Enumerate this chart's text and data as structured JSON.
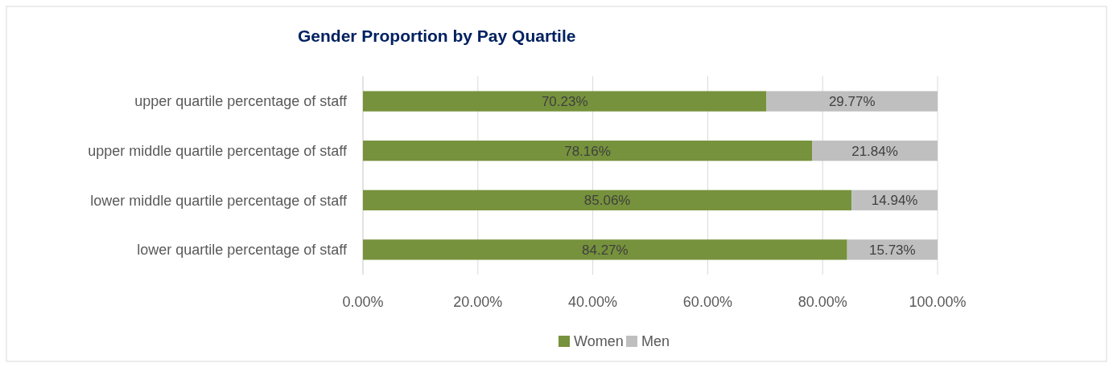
{
  "chart_data": {
    "type": "bar",
    "title": "Gender Proportion by Pay Quartile",
    "orientation": "horizontal",
    "stacked": true,
    "categories": [
      "upper quartile percentage of staff",
      "upper middle quartile percentage of staff",
      "lower middle quartile percentage of staff",
      "lower quartile percentage of staff"
    ],
    "series": [
      {
        "name": "Women",
        "color": "#76923c",
        "values": [
          70.23,
          78.16,
          85.06,
          84.27
        ],
        "value_labels": [
          "70.23%",
          "78.16%",
          "85.06%",
          "84.27%"
        ]
      },
      {
        "name": "Men",
        "color": "#bfbfbf",
        "values": [
          29.77,
          21.84,
          14.94,
          15.73
        ],
        "value_labels": [
          "29.77%",
          "21.84%",
          "14.94%",
          "15.73%"
        ]
      }
    ],
    "xlim": [
      0,
      100
    ],
    "xticks": [
      {
        "value": 0,
        "label": "0.00%"
      },
      {
        "value": 20,
        "label": "20.00%"
      },
      {
        "value": 40,
        "label": "40.00%"
      },
      {
        "value": 60,
        "label": "60.00%"
      },
      {
        "value": 80,
        "label": "80.00%"
      },
      {
        "value": 100,
        "label": "100.00%"
      }
    ],
    "grid": "x",
    "legend": "bottom"
  }
}
